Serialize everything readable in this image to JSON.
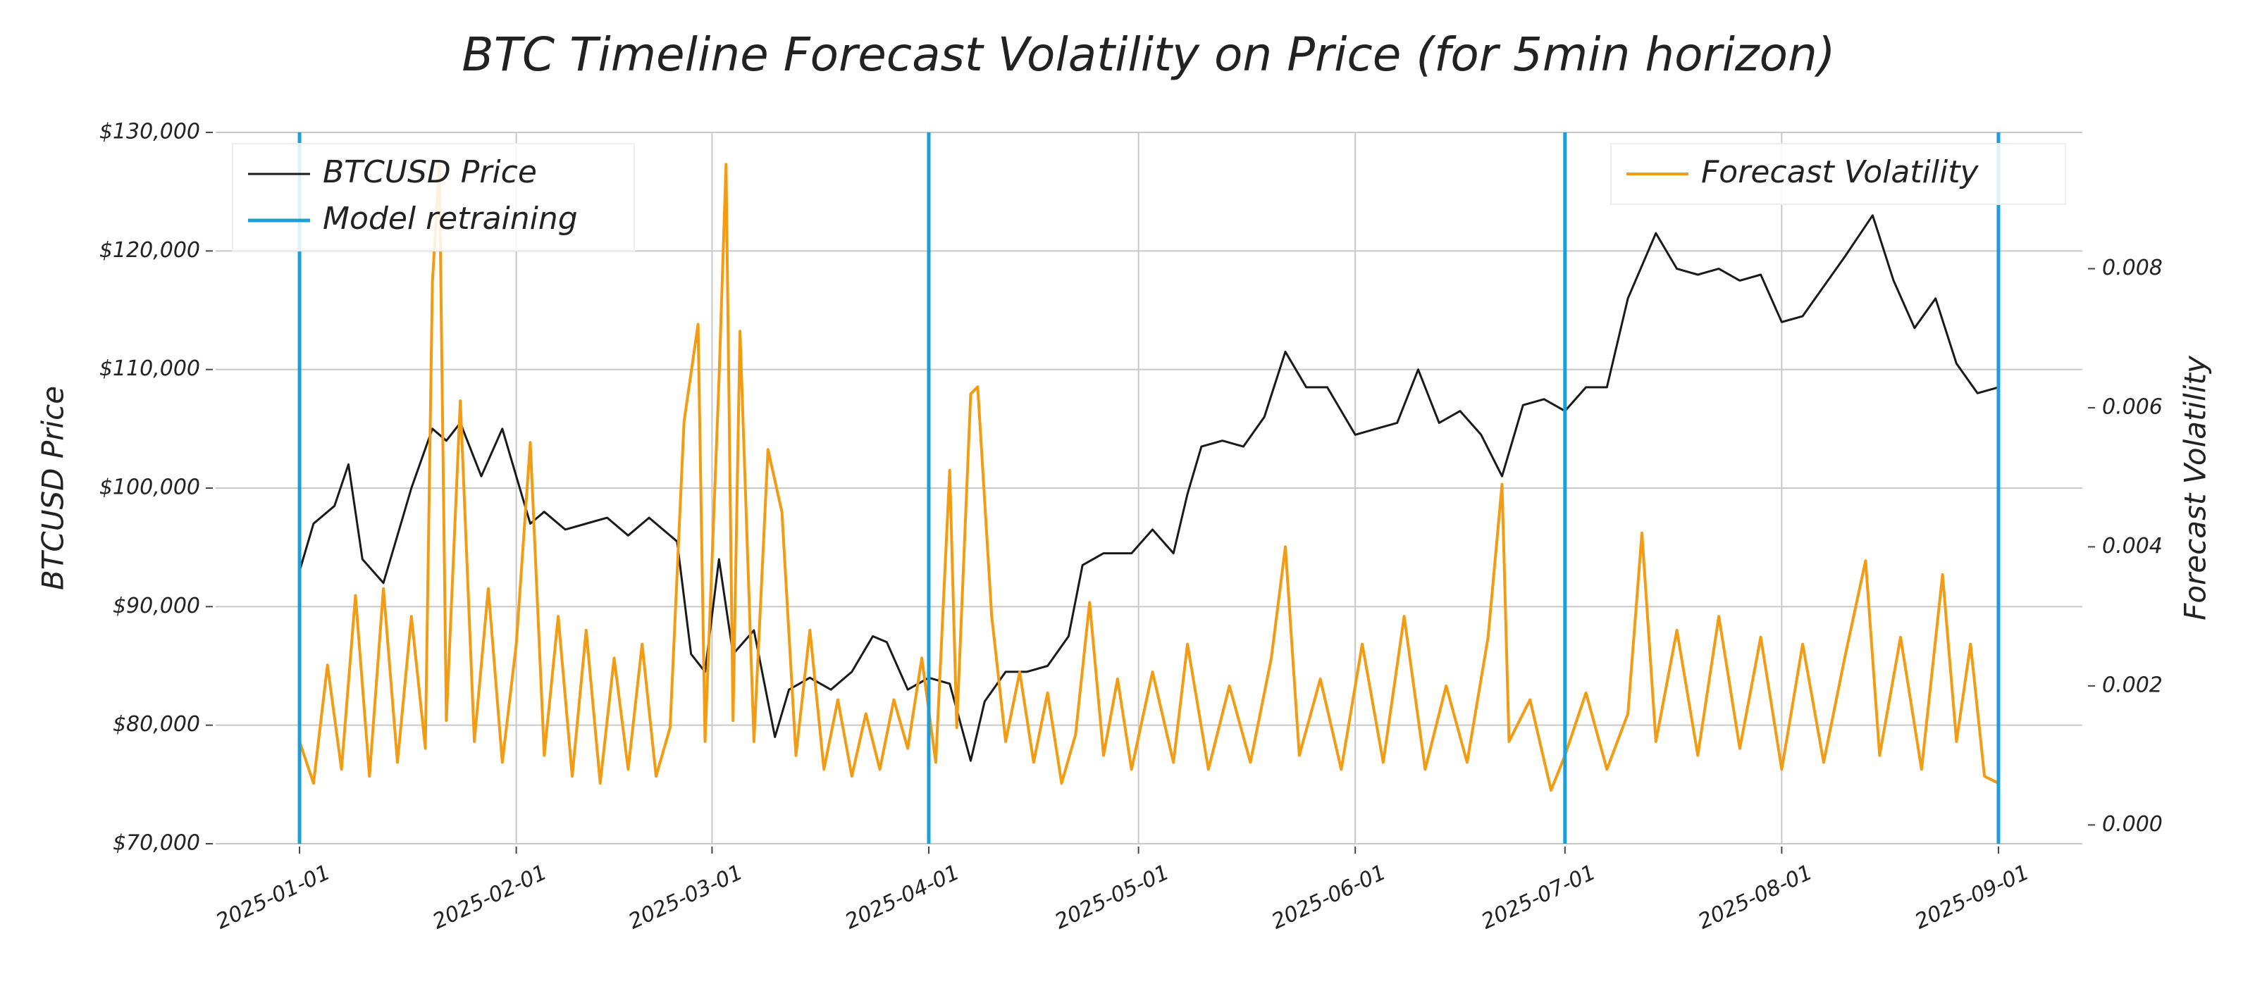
{
  "chart_data": {
    "type": "line",
    "title": "BTC Timeline Forecast Volatility on Price (for 5min horizon)",
    "ylabel": "BTCUSD Price",
    "y2label": "Forecast Volatility",
    "xlim": [
      "2024-12-20",
      "2025-09-13"
    ],
    "xticks": [
      "2025-01-01",
      "2025-02-01",
      "2025-03-01",
      "2025-04-01",
      "2025-05-01",
      "2025-06-01",
      "2025-07-01",
      "2025-08-01",
      "2025-09-01"
    ],
    "ylim": [
      70000,
      130000
    ],
    "yticks": [
      {
        "value": 70000,
        "label": "$70,000"
      },
      {
        "value": 80000,
        "label": "$80,000"
      },
      {
        "value": 90000,
        "label": "$90,000"
      },
      {
        "value": 100000,
        "label": "$100,000"
      },
      {
        "value": 110000,
        "label": "$110,000"
      },
      {
        "value": 120000,
        "label": "$120,000"
      },
      {
        "value": 130000,
        "label": "$130,000"
      }
    ],
    "y2lim": [
      -0.00027,
      0.00996
    ],
    "y2ticks": [
      {
        "value": 0,
        "label": "0.000"
      },
      0.002,
      0.004,
      0.006,
      0.008
    ],
    "grid": true,
    "legend_loc": "upper left",
    "legend2_loc": "upper right",
    "retraining": {
      "name": "Model retraining",
      "color": "#1a9fdb",
      "dates": [
        "2025-01-01",
        "2025-04-01",
        "2025-07-01",
        "2025-09-01"
      ]
    },
    "series": [
      {
        "name": "BTCUSD Price",
        "color": "#1a1a1a",
        "x": [
          "2025-01-01",
          "2025-01-03",
          "2025-01-06",
          "2025-01-08",
          "2025-01-10",
          "2025-01-13",
          "2025-01-15",
          "2025-01-17",
          "2025-01-20",
          "2025-01-22",
          "2025-01-24",
          "2025-01-27",
          "2025-01-30",
          "2025-02-01",
          "2025-02-03",
          "2025-02-05",
          "2025-02-08",
          "2025-02-11",
          "2025-02-14",
          "2025-02-17",
          "2025-02-20",
          "2025-02-24",
          "2025-02-26",
          "2025-02-28",
          "2025-03-02",
          "2025-03-04",
          "2025-03-07",
          "2025-03-10",
          "2025-03-12",
          "2025-03-15",
          "2025-03-18",
          "2025-03-21",
          "2025-03-24",
          "2025-03-26",
          "2025-03-29",
          "2025-04-01",
          "2025-04-04",
          "2025-04-07",
          "2025-04-09",
          "2025-04-12",
          "2025-04-15",
          "2025-04-18",
          "2025-04-21",
          "2025-04-23",
          "2025-04-26",
          "2025-04-30",
          "2025-05-03",
          "2025-05-06",
          "2025-05-08",
          "2025-05-10",
          "2025-05-13",
          "2025-05-16",
          "2025-05-19",
          "2025-05-22",
          "2025-05-25",
          "2025-05-28",
          "2025-06-01",
          "2025-06-04",
          "2025-06-07",
          "2025-06-10",
          "2025-06-13",
          "2025-06-16",
          "2025-06-19",
          "2025-06-22",
          "2025-06-25",
          "2025-06-28",
          "2025-07-01",
          "2025-07-04",
          "2025-07-07",
          "2025-07-10",
          "2025-07-14",
          "2025-07-17",
          "2025-07-20",
          "2025-07-23",
          "2025-07-26",
          "2025-07-29",
          "2025-08-01",
          "2025-08-04",
          "2025-08-07",
          "2025-08-10",
          "2025-08-14",
          "2025-08-17",
          "2025-08-20",
          "2025-08-23",
          "2025-08-26",
          "2025-08-29",
          "2025-09-01"
        ],
        "values": [
          93000,
          97000,
          98500,
          102000,
          94000,
          92000,
          96000,
          100000,
          105000,
          104000,
          105500,
          101000,
          105000,
          101000,
          97000,
          98000,
          96500,
          97000,
          97500,
          96000,
          97500,
          95500,
          86000,
          84500,
          94000,
          86000,
          88000,
          79000,
          83000,
          84000,
          83000,
          84500,
          87500,
          87000,
          83000,
          84000,
          83500,
          77000,
          82000,
          84500,
          84500,
          85000,
          87500,
          93500,
          94500,
          94500,
          96500,
          94500,
          99500,
          103500,
          104000,
          103500,
          106000,
          111500,
          108500,
          108500,
          104500,
          105000,
          105500,
          110000,
          105500,
          106500,
          104500,
          101000,
          107000,
          107500,
          106500,
          108500,
          108500,
          116000,
          121500,
          118500,
          118000,
          118500,
          117500,
          118000,
          114000,
          114500,
          117000,
          119500,
          123000,
          117500,
          113500,
          116000,
          110500,
          108000,
          108500
        ]
      },
      {
        "name": "Forecast Volatility",
        "color": "#f39c12",
        "axis": "y2",
        "x": [
          "2025-01-01",
          "2025-01-03",
          "2025-01-05",
          "2025-01-07",
          "2025-01-09",
          "2025-01-11",
          "2025-01-13",
          "2025-01-15",
          "2025-01-17",
          "2025-01-19",
          "2025-01-20",
          "2025-01-21",
          "2025-01-22",
          "2025-01-24",
          "2025-01-26",
          "2025-01-28",
          "2025-01-30",
          "2025-02-01",
          "2025-02-03",
          "2025-02-05",
          "2025-02-07",
          "2025-02-09",
          "2025-02-11",
          "2025-02-13",
          "2025-02-15",
          "2025-02-17",
          "2025-02-19",
          "2025-02-21",
          "2025-02-23",
          "2025-02-25",
          "2025-02-27",
          "2025-02-28",
          "2025-03-02",
          "2025-03-03",
          "2025-03-04",
          "2025-03-05",
          "2025-03-07",
          "2025-03-09",
          "2025-03-11",
          "2025-03-13",
          "2025-03-15",
          "2025-03-17",
          "2025-03-19",
          "2025-03-21",
          "2025-03-23",
          "2025-03-25",
          "2025-03-27",
          "2025-03-29",
          "2025-03-31",
          "2025-04-02",
          "2025-04-04",
          "2025-04-05",
          "2025-04-07",
          "2025-04-08",
          "2025-04-10",
          "2025-04-12",
          "2025-04-14",
          "2025-04-16",
          "2025-04-18",
          "2025-04-20",
          "2025-04-22",
          "2025-04-24",
          "2025-04-26",
          "2025-04-28",
          "2025-04-30",
          "2025-05-03",
          "2025-05-06",
          "2025-05-08",
          "2025-05-11",
          "2025-05-14",
          "2025-05-17",
          "2025-05-20",
          "2025-05-22",
          "2025-05-24",
          "2025-05-27",
          "2025-05-30",
          "2025-06-02",
          "2025-06-05",
          "2025-06-08",
          "2025-06-11",
          "2025-06-14",
          "2025-06-17",
          "2025-06-20",
          "2025-06-22",
          "2025-06-23",
          "2025-06-26",
          "2025-06-29",
          "2025-07-01",
          "2025-07-04",
          "2025-07-07",
          "2025-07-10",
          "2025-07-12",
          "2025-07-14",
          "2025-07-17",
          "2025-07-20",
          "2025-07-23",
          "2025-07-26",
          "2025-07-29",
          "2025-08-01",
          "2025-08-04",
          "2025-08-07",
          "2025-08-10",
          "2025-08-13",
          "2025-08-15",
          "2025-08-18",
          "2025-08-21",
          "2025-08-24",
          "2025-08-26",
          "2025-08-28",
          "2025-08-30",
          "2025-09-01"
        ],
        "values": [
          0.0012,
          0.0006,
          0.0023,
          0.0008,
          0.0033,
          0.0007,
          0.0034,
          0.0009,
          0.003,
          0.0011,
          0.0078,
          0.0095,
          0.0015,
          0.0061,
          0.0012,
          0.0034,
          0.0009,
          0.0026,
          0.0055,
          0.001,
          0.003,
          0.0007,
          0.0028,
          0.0006,
          0.0024,
          0.0008,
          0.0026,
          0.0007,
          0.0014,
          0.0058,
          0.0072,
          0.0012,
          0.0064,
          0.0095,
          0.0015,
          0.0071,
          0.0012,
          0.0054,
          0.0045,
          0.001,
          0.0028,
          0.0008,
          0.0018,
          0.0007,
          0.0016,
          0.0008,
          0.0018,
          0.0011,
          0.0024,
          0.0009,
          0.0051,
          0.0014,
          0.0062,
          0.0063,
          0.003,
          0.0012,
          0.0022,
          0.0009,
          0.0019,
          0.0006,
          0.0013,
          0.0032,
          0.001,
          0.0021,
          0.0008,
          0.0022,
          0.0009,
          0.0026,
          0.0008,
          0.002,
          0.0009,
          0.0024,
          0.004,
          0.001,
          0.0021,
          0.0008,
          0.0026,
          0.0009,
          0.003,
          0.0008,
          0.002,
          0.0009,
          0.0027,
          0.0049,
          0.0012,
          0.0018,
          0.0005,
          0.001,
          0.0019,
          0.0008,
          0.0016,
          0.0042,
          0.0012,
          0.0028,
          0.001,
          0.003,
          0.0011,
          0.0027,
          0.0008,
          0.0026,
          0.0009,
          0.0024,
          0.0038,
          0.001,
          0.0027,
          0.0008,
          0.0036,
          0.0012,
          0.0026,
          0.0007,
          0.0006
        ]
      }
    ]
  }
}
